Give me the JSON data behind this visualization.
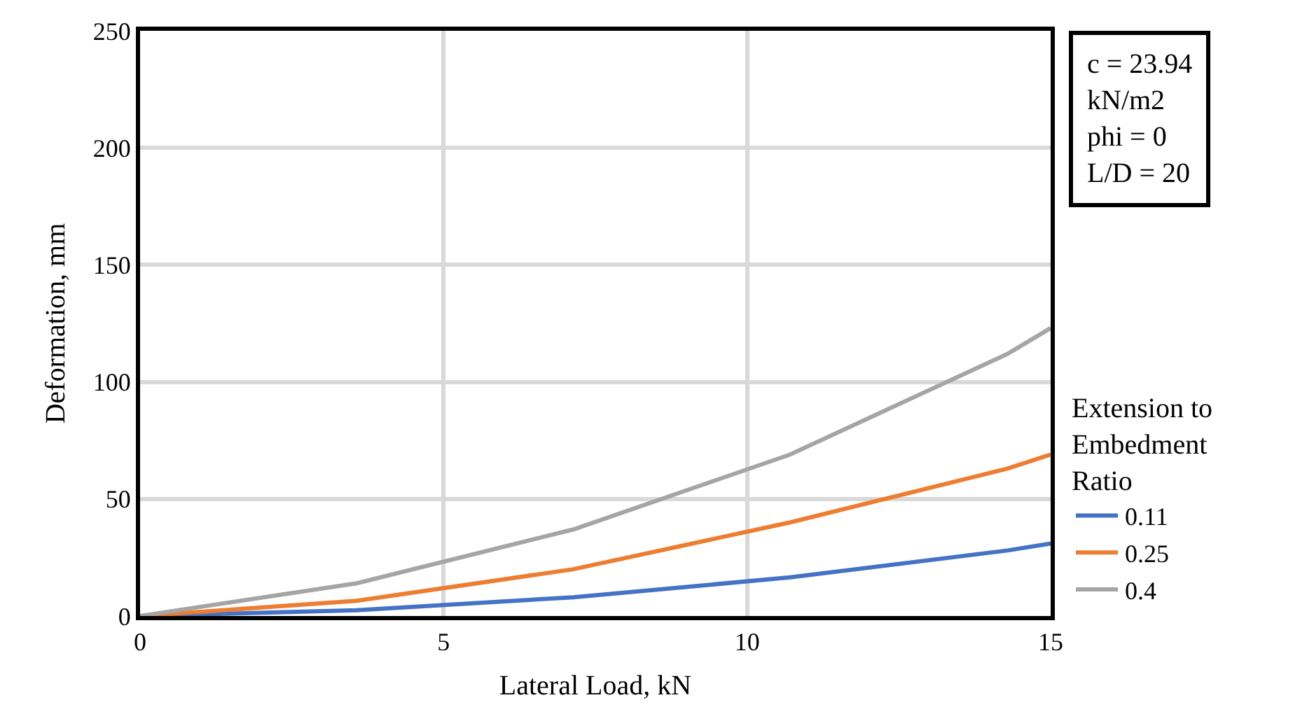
{
  "chart_data": {
    "type": "line",
    "xlabel": "Lateral Load, kN",
    "ylabel": "Deformation, mm",
    "legend_title": "Extension to\nEmbedment\nRatio",
    "annotations": [
      "c = 23.94\nkN/m2\nphi = 0\nL/D = 20"
    ],
    "x": [
      0,
      3.57,
      7.14,
      10.71,
      14.29,
      15
    ],
    "series": [
      {
        "name": "0.11",
        "color": "#4472c4",
        "values": [
          0,
          2.5,
          8,
          16.5,
          28,
          31
        ]
      },
      {
        "name": "0.25",
        "color": "#ed7d31",
        "values": [
          0,
          6.5,
          20,
          40,
          63,
          69
        ]
      },
      {
        "name": "0.4",
        "color": "#a5a5a5",
        "values": [
          0,
          14,
          37,
          69,
          112,
          123
        ]
      }
    ],
    "xlim": [
      0,
      15
    ],
    "xticks": [
      0,
      5,
      10,
      15
    ],
    "ylim": [
      0,
      250
    ],
    "yticks": [
      0,
      50,
      100,
      150,
      200,
      250
    ],
    "grid": true,
    "legend": "right",
    "marker": "none",
    "line_style": "solid"
  }
}
